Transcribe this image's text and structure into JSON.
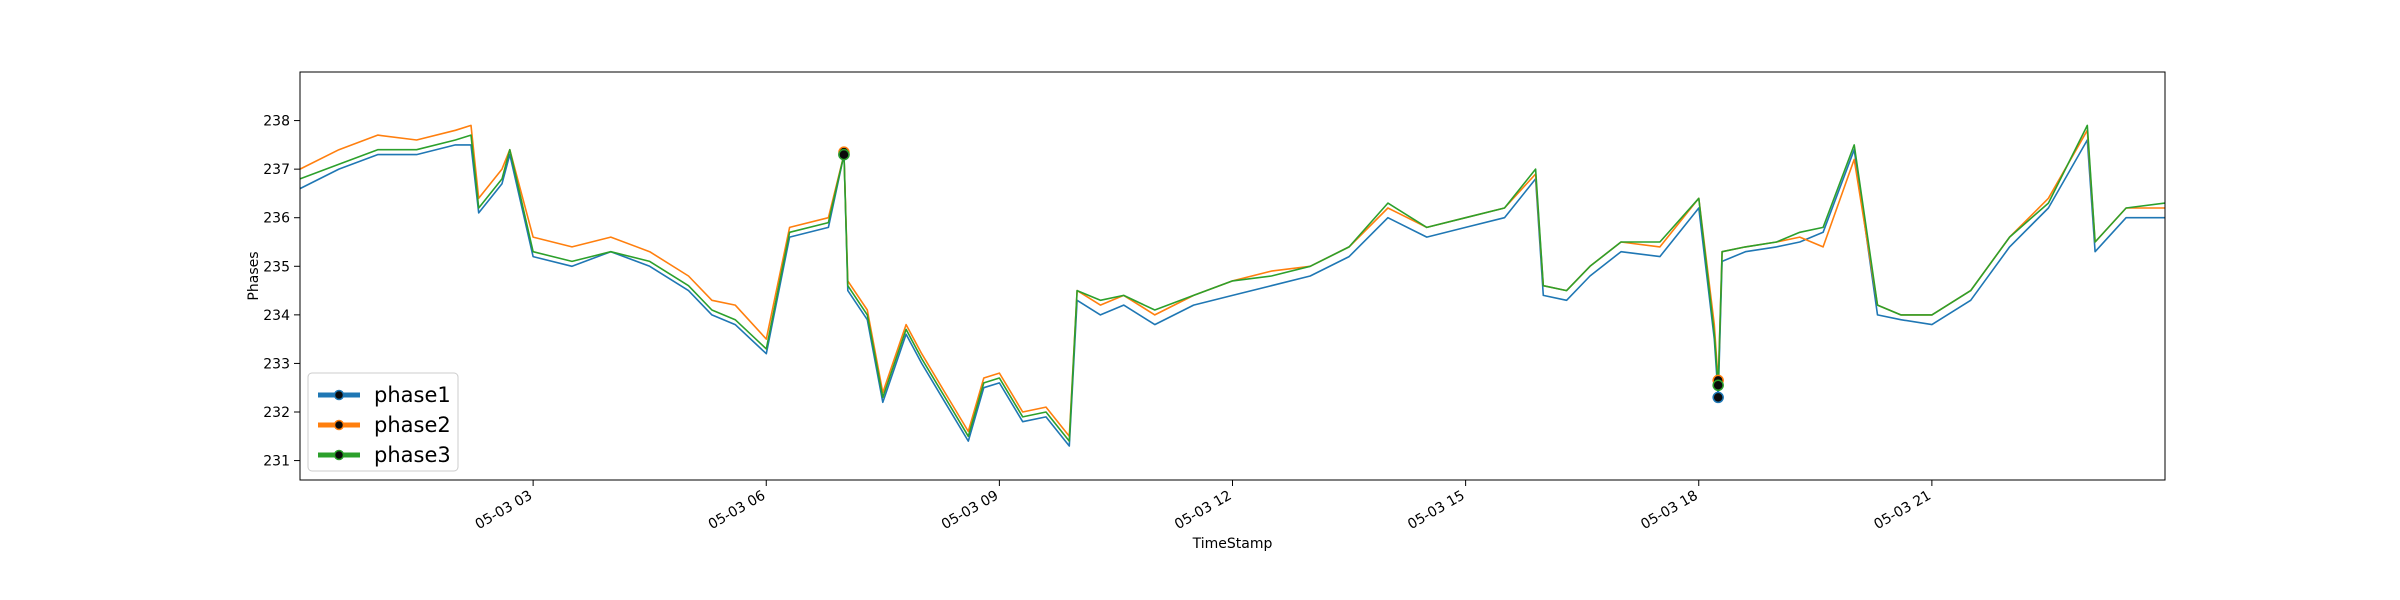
{
  "chart_data": {
    "type": "line",
    "title": "",
    "xlabel": "TimeStamp",
    "ylabel": "Phases",
    "x_unit": "hour of 2022-05-03 (00:00 = 0)",
    "xlim": [
      0,
      24
    ],
    "ylim": [
      230.6,
      239.0
    ],
    "x_ticks": [
      {
        "value": 3,
        "label": "05-03 03"
      },
      {
        "value": 6,
        "label": "05-03 06"
      },
      {
        "value": 9,
        "label": "05-03 09"
      },
      {
        "value": 12,
        "label": "05-03 12"
      },
      {
        "value": 15,
        "label": "05-03 15"
      },
      {
        "value": 18,
        "label": "05-03 18"
      },
      {
        "value": 21,
        "label": "05-03 21"
      }
    ],
    "y_ticks": [
      {
        "value": 231,
        "label": "231"
      },
      {
        "value": 232,
        "label": "232"
      },
      {
        "value": 233,
        "label": "233"
      },
      {
        "value": 234,
        "label": "234"
      },
      {
        "value": 235,
        "label": "235"
      },
      {
        "value": 236,
        "label": "236"
      },
      {
        "value": 237,
        "label": "237"
      },
      {
        "value": 238,
        "label": "238"
      }
    ],
    "grid": false,
    "legend_position": "lower-left",
    "series": [
      {
        "name": "phase1",
        "color": "#1f77b4",
        "x": [
          0,
          0.5,
          1,
          1.5,
          2,
          2.2,
          2.3,
          2.6,
          2.7,
          3,
          3.5,
          4,
          4.5,
          5,
          5.3,
          5.6,
          6.0,
          6.3,
          6.8,
          7.0,
          7.05,
          7.3,
          7.5,
          7.8,
          8.0,
          8.3,
          8.6,
          8.8,
          9.0,
          9.3,
          9.6,
          9.9,
          10.0,
          10.3,
          10.6,
          11,
          11.5,
          12,
          12.5,
          13,
          13.5,
          14,
          14.5,
          15,
          15.5,
          15.9,
          16.0,
          16.3,
          16.6,
          17,
          17.5,
          18,
          18.2,
          18.25,
          18.3,
          18.6,
          19,
          19.3,
          19.6,
          20.0,
          20.3,
          20.6,
          21,
          21.5,
          22,
          22.5,
          23.0,
          23.1,
          23.5,
          24
        ],
        "y": [
          236.6,
          237.0,
          237.3,
          237.3,
          237.5,
          237.5,
          236.1,
          236.7,
          237.3,
          235.2,
          235.0,
          235.3,
          235.0,
          234.5,
          234.0,
          233.8,
          233.2,
          235.6,
          235.8,
          237.3,
          234.5,
          233.9,
          232.2,
          233.6,
          233.0,
          232.2,
          231.4,
          232.5,
          232.6,
          231.8,
          231.9,
          231.3,
          234.3,
          234.0,
          234.2,
          233.8,
          234.2,
          234.4,
          234.6,
          234.8,
          235.2,
          236.0,
          235.6,
          235.8,
          236.0,
          236.8,
          234.4,
          234.3,
          234.8,
          235.3,
          235.2,
          236.2,
          233.5,
          232.3,
          235.1,
          235.3,
          235.4,
          235.5,
          235.7,
          237.4,
          234.0,
          233.9,
          233.8,
          234.3,
          235.4,
          236.2,
          237.6,
          235.3,
          236.0,
          236.0
        ]
      },
      {
        "name": "phase2",
        "color": "#ff7f0e",
        "x": [
          0,
          0.5,
          1,
          1.5,
          2,
          2.2,
          2.3,
          2.6,
          2.7,
          3,
          3.5,
          4,
          4.5,
          5,
          5.3,
          5.6,
          6.0,
          6.3,
          6.8,
          7.0,
          7.05,
          7.3,
          7.5,
          7.8,
          8.0,
          8.3,
          8.6,
          8.8,
          9.0,
          9.3,
          9.6,
          9.9,
          10.0,
          10.3,
          10.6,
          11,
          11.5,
          12,
          12.5,
          13,
          13.5,
          14,
          14.5,
          15,
          15.5,
          15.9,
          16.0,
          16.3,
          16.6,
          17,
          17.5,
          18,
          18.2,
          18.25,
          18.3,
          18.6,
          19,
          19.3,
          19.6,
          20.0,
          20.3,
          20.6,
          21,
          21.5,
          22,
          22.5,
          23.0,
          23.1,
          23.5,
          24
        ],
        "y": [
          237.0,
          237.4,
          237.7,
          237.6,
          237.8,
          237.9,
          236.4,
          237.0,
          237.4,
          235.6,
          235.4,
          235.6,
          235.3,
          234.8,
          234.3,
          234.2,
          233.5,
          235.8,
          236.0,
          237.3,
          234.7,
          234.1,
          232.4,
          233.8,
          233.2,
          232.4,
          231.6,
          232.7,
          232.8,
          232.0,
          232.1,
          231.5,
          234.5,
          234.2,
          234.4,
          234.0,
          234.4,
          234.7,
          234.9,
          235.0,
          235.4,
          236.2,
          235.8,
          236.0,
          236.2,
          236.9,
          234.6,
          234.5,
          235.0,
          235.5,
          235.4,
          236.4,
          233.8,
          232.6,
          235.3,
          235.4,
          235.5,
          235.6,
          235.4,
          237.2,
          234.2,
          234.0,
          234.0,
          234.5,
          235.6,
          236.4,
          237.8,
          235.5,
          236.2,
          236.2
        ]
      },
      {
        "name": "phase3",
        "color": "#2ca02c",
        "x": [
          0,
          0.5,
          1,
          1.5,
          2,
          2.2,
          2.3,
          2.6,
          2.7,
          3,
          3.5,
          4,
          4.5,
          5,
          5.3,
          5.6,
          6.0,
          6.3,
          6.8,
          7.0,
          7.05,
          7.3,
          7.5,
          7.8,
          8.0,
          8.3,
          8.6,
          8.8,
          9.0,
          9.3,
          9.6,
          9.9,
          10.0,
          10.3,
          10.6,
          11,
          11.5,
          12,
          12.5,
          13,
          13.5,
          14,
          14.5,
          15,
          15.5,
          15.9,
          16.0,
          16.3,
          16.6,
          17,
          17.5,
          18,
          18.2,
          18.25,
          18.3,
          18.6,
          19,
          19.3,
          19.6,
          20.0,
          20.3,
          20.6,
          21,
          21.5,
          22,
          22.5,
          23.0,
          23.1,
          23.5,
          24
        ],
        "y": [
          236.8,
          237.1,
          237.4,
          237.4,
          237.6,
          237.7,
          236.2,
          236.8,
          237.4,
          235.3,
          235.1,
          235.3,
          235.1,
          234.6,
          234.1,
          233.9,
          233.3,
          235.7,
          235.9,
          237.3,
          234.6,
          234.0,
          232.3,
          233.7,
          233.1,
          232.3,
          231.5,
          232.6,
          232.7,
          231.9,
          232.0,
          231.4,
          234.5,
          234.3,
          234.4,
          234.1,
          234.4,
          234.7,
          234.8,
          235.0,
          235.4,
          236.3,
          235.8,
          236.0,
          236.2,
          237.0,
          234.6,
          234.5,
          235.0,
          235.5,
          235.5,
          236.4,
          233.6,
          232.5,
          235.3,
          235.4,
          235.5,
          235.7,
          235.8,
          237.5,
          234.2,
          234.0,
          234.0,
          234.5,
          235.6,
          236.3,
          237.9,
          235.5,
          236.2,
          236.3
        ]
      }
    ],
    "markers": [
      {
        "series": "phase1",
        "x": 7.0,
        "y": 237.3
      },
      {
        "series": "phase2",
        "x": 7.0,
        "y": 237.35
      },
      {
        "series": "phase3",
        "x": 7.0,
        "y": 237.3
      },
      {
        "series": "phase1",
        "x": 18.25,
        "y": 232.3
      },
      {
        "series": "phase2",
        "x": 18.25,
        "y": 232.65
      },
      {
        "series": "phase3",
        "x": 18.25,
        "y": 232.55
      }
    ]
  }
}
